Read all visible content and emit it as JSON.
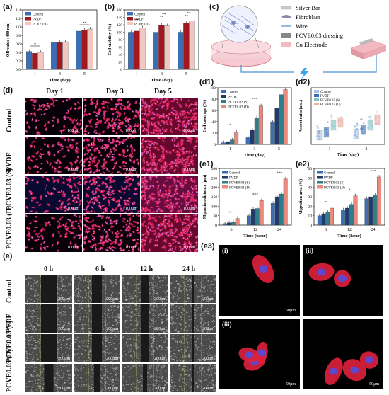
{
  "labels": {
    "a": "(a)",
    "b": "(b)",
    "c": "(c)",
    "d": "(d)",
    "e": "(e)",
    "d1": "(d1)",
    "d2": "(d2)",
    "e1": "(e1)",
    "e2": "(e2)",
    "e3": "(e3)"
  },
  "colors": {
    "control": "#3a6fb5",
    "pvdf": "#a4171f",
    "pcve": "#f2c7c0",
    "dark_navy": "#1f3a6b",
    "teal": "#2f7f8a",
    "salmon": "#ea8a7e",
    "cell_red": "#e0205a",
    "cell_blue": "#4050d0"
  },
  "chart_a": {
    "ylabel": "OD value (490 nm)",
    "xlabel": "Time (day)",
    "categories": [
      "1",
      "3",
      "5"
    ],
    "ylim": [
      0,
      1.4
    ],
    "yticks": [
      "0.0",
      "0.2",
      "0.4",
      "0.6",
      "0.8",
      "1.0",
      "1.2",
      "1.4"
    ],
    "series": [
      {
        "name": "Control",
        "values": [
          0.42,
          0.64,
          0.9
        ]
      },
      {
        "name": "PVDF",
        "values": [
          0.38,
          0.63,
          0.92
        ]
      },
      {
        "name": "PCVE0.03",
        "values": [
          0.4,
          0.65,
          0.95
        ]
      }
    ],
    "sig": [
      "*",
      "**"
    ]
  },
  "chart_b": {
    "ylabel": "Cell viability (%)",
    "xlabel": "Time (day)",
    "categories": [
      "1",
      "3",
      "5"
    ],
    "ylim": [
      0,
      160
    ],
    "yticks": [
      "0",
      "20",
      "40",
      "60",
      "80",
      "100",
      "120",
      "140",
      "160"
    ],
    "series": [
      {
        "name": "Control",
        "values": [
          100,
          100,
          100
        ]
      },
      {
        "name": "PVDF",
        "values": [
          103,
          118,
          124
        ]
      },
      {
        "name": "PCVE0.03",
        "values": [
          112,
          117,
          130
        ]
      }
    ],
    "sig": [
      "**",
      "*",
      "**",
      "**",
      "**",
      "**"
    ]
  },
  "legend_abc": [
    "Control",
    "PVDF",
    "PCVE0.03"
  ],
  "schematic": {
    "items": [
      "Silver Bar",
      "Fibroblast",
      "Wire",
      "PCVE0.03 dressing",
      "Cu Electrode"
    ]
  },
  "grid_d": {
    "cols": [
      "Day 1",
      "Day 3",
      "Day 5"
    ],
    "rows": [
      "Control",
      "PVDF",
      "PCVE0.03 (S)",
      "PCVE0.03 (D)"
    ],
    "scale": "100μm"
  },
  "grid_e": {
    "cols": [
      "0 h",
      "6 h",
      "12 h",
      "24 h"
    ],
    "rows": [
      "Control",
      "PVDF",
      "PCVE0.03 (S)",
      "PCVE0.03 (D)"
    ],
    "scale": "200μm"
  },
  "chart_d1": {
    "ylabel": "Cell coverage (%)",
    "xlabel": "Time (day)",
    "categories": [
      "1",
      "3",
      "5"
    ],
    "ylim": [
      0,
      100
    ],
    "yticks": [
      "0",
      "20",
      "40",
      "60",
      "80",
      "100"
    ],
    "series": [
      {
        "name": "Control",
        "values": [
          3,
          12,
          40
        ]
      },
      {
        "name": "PVDF",
        "values": [
          5,
          25,
          64
        ]
      },
      {
        "name": "PCVE0.03 (S)",
        "values": [
          8,
          47,
          88
        ]
      },
      {
        "name": "PCVE0.03 (D)",
        "values": [
          22,
          68,
          97
        ]
      }
    ]
  },
  "chart_d2": {
    "ylabel": "Aspect ratio (a.u.)",
    "xlabel": "Time (day)",
    "categories": [
      "1",
      "3"
    ],
    "legend": [
      "Control",
      "PVDF",
      "PCVE0.03 (S)",
      "PCVE0.03 (D)"
    ]
  },
  "chart_e1": {
    "ylabel": "Migration distance (μm)",
    "xlabel": "Time (hour)",
    "categories": [
      "6",
      "12",
      "24"
    ],
    "ylim": [
      0,
      300
    ],
    "yticks": [
      "0",
      "50",
      "100",
      "150",
      "200",
      "250",
      "300"
    ],
    "series": [
      {
        "name": "Control",
        "values": [
          8,
          50,
          115
        ]
      },
      {
        "name": "PVDF",
        "values": [
          12,
          85,
          150
        ]
      },
      {
        "name": "PCVE0.03 (S)",
        "values": [
          15,
          88,
          165
        ]
      },
      {
        "name": "PCVE0.03 (D)",
        "values": [
          35,
          130,
          245
        ]
      }
    ]
  },
  "chart_e2": {
    "ylabel": "Migration area (%)",
    "xlabel": "Time (hour)",
    "categories": [
      "6",
      "12",
      "24"
    ],
    "ylim": [
      0,
      60
    ],
    "yticks": [
      "0",
      "10",
      "20",
      "30",
      "40",
      "50",
      "60"
    ],
    "series": [
      {
        "name": "Control",
        "values": [
          10,
          16,
          28
        ]
      },
      {
        "name": "PVDF",
        "values": [
          12,
          18,
          30
        ]
      },
      {
        "name": "PCVE0.03 (S)",
        "values": [
          14,
          22,
          32
        ]
      },
      {
        "name": "PCVE0.03 (D)",
        "values": [
          18,
          31,
          51
        ]
      }
    ]
  },
  "e3_panels": [
    {
      "label": "(i)",
      "scale": "50μm"
    },
    {
      "label": "(ii)",
      "scale": ""
    },
    {
      "label": "(iii)",
      "scale": "50μm"
    },
    {
      "label": "",
      "scale": "50μm"
    }
  ],
  "e3_label": "(e3)"
}
